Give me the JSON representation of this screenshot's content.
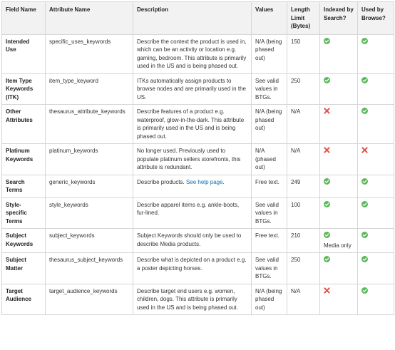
{
  "headers": {
    "field_name": "Field Name",
    "attribute_name": "Attribute Name",
    "description": "Description",
    "values": "Values",
    "length_limit": "Length Limit (Bytes)",
    "indexed": "Indexed by Search?",
    "browse": "Used by Browse?"
  },
  "rows": [
    {
      "field": "Intended Use",
      "attribute": "specific_uses_keywords",
      "description": "Describe the context the product is used in, which can be an activity or location e.g. gaming, bedroom. This attribute is primarily used in the US and is being phased out.",
      "values": "N/A (being phased out)",
      "limit": "150",
      "indexed": "check",
      "browse": "check"
    },
    {
      "field": "Item Type Keywords (ITK)",
      "attribute": "item_type_keyword",
      "description": "ITKs automatically assign products to browse nodes and are primarily used in the US.",
      "values": "See valid values in BTGs.",
      "limit": "250",
      "indexed": "check",
      "browse": "check"
    },
    {
      "field": "Other Attributes",
      "attribute": "thesaurus_attribute_keywords",
      "description": "Describe features of a product e.g. waterproof, glow-in-the-dark. This attribute is primarily used in the US and is being phased out.",
      "values": "N/A (being phased out)",
      "limit": "N/A",
      "indexed": "cross",
      "browse": "check"
    },
    {
      "field": "Platinum Keywords",
      "attribute": "platinum_keywords",
      "description": "No longer used. Previously used to populate platinum sellers storefronts, this attribute is redundant.",
      "values": "N/A (phased out)",
      "limit": "N/A",
      "indexed": "cross",
      "browse": "cross"
    },
    {
      "field": "Search Terms",
      "attribute": "generic_keywords",
      "description": "Describe products.",
      "description_link": "See help page",
      "description_end": ".",
      "values": "Free text.",
      "limit": "249",
      "indexed": "check",
      "browse": "check"
    },
    {
      "field": "Style-specific Terms",
      "attribute": "style_keywords",
      "description": "Describe apparel items e.g. ankle-boots, fur-lined.",
      "values": "See valid values in BTGs.",
      "limit": "100",
      "indexed": "check",
      "browse": "check"
    },
    {
      "field": "Subject Keywords",
      "attribute": "subject_keywords",
      "description": "Subject Keywords should only be used to describe Media products.",
      "values": "Free text.",
      "limit": "210",
      "indexed": "check",
      "indexed_note": "Media only",
      "browse": "check"
    },
    {
      "field": "Subject Matter",
      "attribute": "thesaurus_subject_keywords",
      "description": "Describe what is depicted on a product e.g. a poster depicting horses.",
      "values": "See valid values in BTGs.",
      "limit": "250",
      "indexed": "check",
      "browse": "check"
    },
    {
      "field": "Target Audience",
      "attribute": "target_audience_keywords",
      "description": "Describe target end users e.g. women, children, dogs. This attribute is primarily used in the US and is being phased out.",
      "values": "N/A (being phased out)",
      "limit": "N/A",
      "indexed": "cross",
      "browse": "check"
    }
  ],
  "icon_colors": {
    "check": "#5cb85c",
    "cross": "#e0534a"
  }
}
